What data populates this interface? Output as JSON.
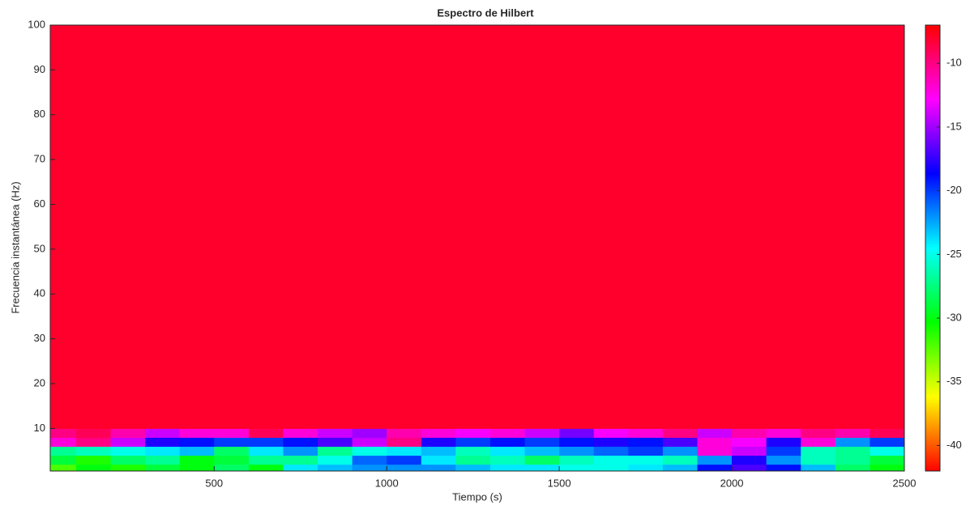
{
  "chart_data": {
    "type": "heatmap",
    "title": "Espectro de Hilbert",
    "x_label": "Tiempo (s)",
    "y_label": "Frecuencia instantánea (Hz)",
    "xlim": [
      25,
      2500
    ],
    "xticks": [
      500,
      1000,
      1500,
      2000,
      2500
    ],
    "ylim": [
      0.5,
      100
    ],
    "yticks": [
      10,
      20,
      30,
      40,
      50,
      60,
      70,
      80,
      90,
      100
    ],
    "colormap": "hsv",
    "clim": [
      -42,
      -7
    ],
    "cticks": [
      -40,
      -35,
      -30,
      -25,
      -20,
      -15,
      -10
    ],
    "x_edges": [
      25,
      100,
      200,
      300,
      400,
      500,
      600,
      700,
      800,
      900,
      1000,
      1100,
      1200,
      1300,
      1400,
      1500,
      1600,
      1700,
      1800,
      1900,
      2000,
      2100,
      2200,
      2300,
      2400,
      2500
    ],
    "y_edges": [
      0.5,
      2,
      4,
      6,
      8,
      10,
      100
    ],
    "z": [
      [
        -32,
        -30,
        -31,
        -29,
        -30,
        -28,
        -30,
        -24,
        -23,
        -22,
        -22,
        -22,
        -23,
        -24,
        -24,
        -25,
        -25,
        -24,
        -23,
        -19,
        -17,
        -19,
        -23,
        -28,
        -30
      ],
      [
        -29,
        -31,
        -28,
        -27,
        -30,
        -29,
        -27,
        -27,
        -25,
        -21,
        -20,
        -24,
        -27,
        -26,
        -28,
        -26,
        -25,
        -25,
        -26,
        -22,
        -18,
        -22,
        -26,
        -27,
        -29
      ],
      [
        -27,
        -26,
        -25,
        -24,
        -23,
        -28,
        -24,
        -22,
        -27,
        -25,
        -24,
        -23,
        -26,
        -24,
        -23,
        -22,
        -21,
        -20,
        -22,
        -12,
        -14,
        -20,
        -26,
        -27,
        -25
      ],
      [
        -12,
        -10,
        -14,
        -18,
        -19,
        -20,
        -20,
        -19,
        -17,
        -14,
        -10,
        -18,
        -20,
        -19,
        -20,
        -19,
        -18,
        -19,
        -17,
        -12,
        -13,
        -18,
        -12,
        -22,
        -20
      ],
      [
        -10,
        -9,
        -11,
        -14,
        -12,
        -12,
        -9,
        -12,
        -14,
        -15,
        -11,
        -12,
        -13,
        -12,
        -14,
        -16,
        -13,
        -12,
        -10,
        -14,
        -11,
        -12,
        -10,
        -11,
        -9
      ],
      [
        -8,
        -8,
        -8,
        -8,
        -8,
        -8,
        -8,
        -8,
        -8,
        -8,
        -8,
        -8,
        -8,
        -8,
        -8,
        -8,
        -8,
        -8,
        -8,
        -8,
        -8,
        -8,
        -8,
        -8,
        -8
      ]
    ]
  }
}
